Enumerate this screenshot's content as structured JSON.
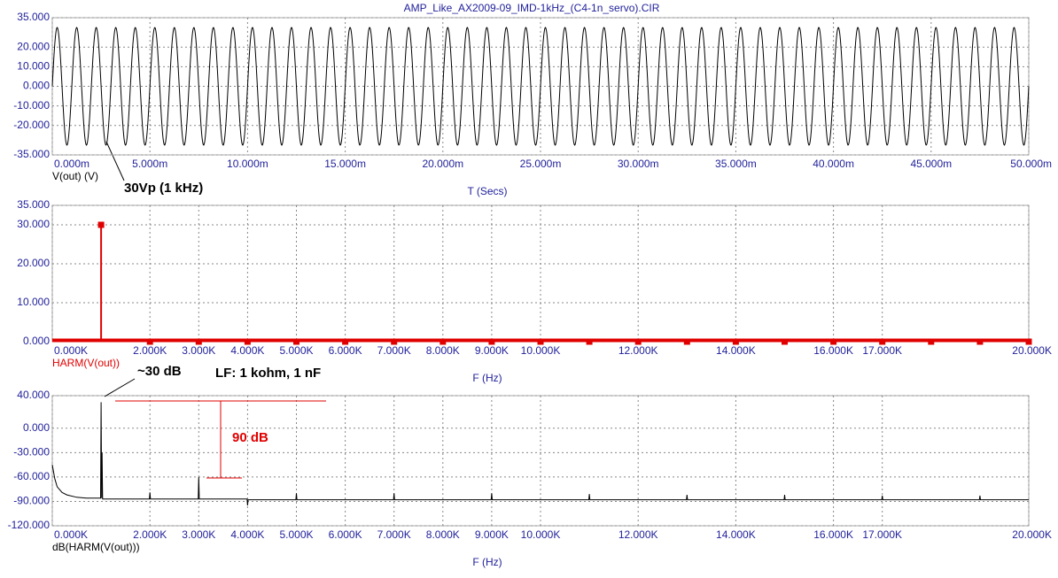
{
  "chart_data": [
    {
      "type": "line",
      "title": "AMP_Like_AX2009-09_IMD-1kHz_(C4-1n_servo).CIR",
      "x_label": "T (Secs)",
      "series": [
        {
          "name": "V(out) (V)",
          "color": "#000000",
          "amplitude": 30,
          "frequency": 1000
        }
      ],
      "xlim": [
        0,
        0.05
      ],
      "xticks": [
        {
          "value": 0,
          "label": "0.000m"
        },
        {
          "value": 0.005,
          "label": "5.000m"
        },
        {
          "value": 0.01,
          "label": "10.000m"
        },
        {
          "value": 0.015,
          "label": "15.000m"
        },
        {
          "value": 0.02,
          "label": "20.000m"
        },
        {
          "value": 0.025,
          "label": "25.000m"
        },
        {
          "value": 0.03,
          "label": "30.000m"
        },
        {
          "value": 0.035,
          "label": "35.000m"
        },
        {
          "value": 0.04,
          "label": "40.000m"
        },
        {
          "value": 0.045,
          "label": "45.000m"
        },
        {
          "value": 0.05,
          "label": "50.000m"
        }
      ],
      "ylim": [
        -35,
        35
      ],
      "yticks": [
        {
          "value": -35,
          "label": "-35.000"
        },
        {
          "value": -20,
          "label": "-20.000"
        },
        {
          "value": -10,
          "label": "-10.000"
        },
        {
          "value": 0,
          "label": "0.000"
        },
        {
          "value": 10,
          "label": "10.000"
        },
        {
          "value": 20,
          "label": "20.000"
        },
        {
          "value": 35,
          "label": "35.000"
        }
      ],
      "grid": true,
      "annotations": [
        "30Vp (1 kHz)"
      ]
    },
    {
      "type": "stem",
      "x_label": "F (Hz)",
      "series": [
        {
          "name": "HARM(V(out))",
          "color": "#e00000",
          "x": [
            1000,
            2000,
            3000,
            4000,
            5000,
            6000,
            7000,
            8000,
            9000,
            10000,
            11000,
            12000,
            13000,
            14000,
            15000,
            16000,
            17000,
            18000,
            19000,
            20000
          ],
          "values": [
            30,
            0,
            0,
            0,
            0,
            0,
            0,
            0,
            0,
            0,
            0,
            0,
            0,
            0,
            0,
            0,
            0,
            0,
            0,
            0
          ]
        }
      ],
      "xlim": [
        0,
        20000
      ],
      "xticks": [
        {
          "value": 0,
          "label": "0.000K"
        },
        {
          "value": 2000,
          "label": "2.000K"
        },
        {
          "value": 3000,
          "label": "3.000K"
        },
        {
          "value": 4000,
          "label": "4.000K"
        },
        {
          "value": 5000,
          "label": "5.000K"
        },
        {
          "value": 6000,
          "label": "6.000K"
        },
        {
          "value": 7000,
          "label": "7.000K"
        },
        {
          "value": 8000,
          "label": "8.000K"
        },
        {
          "value": 9000,
          "label": "9.000K"
        },
        {
          "value": 10000,
          "label": "10.000K"
        },
        {
          "value": 12000,
          "label": "12.000K"
        },
        {
          "value": 14000,
          "label": "14.000K"
        },
        {
          "value": 16000,
          "label": "16.000K"
        },
        {
          "value": 17000,
          "label": "17.000K"
        },
        {
          "value": 20000,
          "label": "20.000K"
        }
      ],
      "ylim": [
        0,
        35
      ],
      "yticks": [
        {
          "value": 0,
          "label": "0.000"
        },
        {
          "value": 10,
          "label": "10.000"
        },
        {
          "value": 20,
          "label": "20.000"
        },
        {
          "value": 30,
          "label": "30.000"
        },
        {
          "value": 35,
          "label": "35.000"
        }
      ],
      "grid": true
    },
    {
      "type": "line",
      "x_label": "F (Hz)",
      "series": [
        {
          "name": "dB(HARM(V(out)))",
          "color": "#000000",
          "x": [
            0,
            50,
            100,
            200,
            300,
            500,
            700,
            990,
            1000,
            1010,
            1020,
            1030,
            1990,
            2000,
            2010,
            2990,
            3000,
            3010,
            3990,
            4000,
            4010,
            4990,
            5000,
            5010,
            6990,
            7000,
            7010,
            8990,
            9000,
            9010,
            10990,
            11000,
            11010,
            12990,
            13000,
            13010,
            14990,
            15000,
            15010,
            16990,
            17000,
            17010,
            18990,
            19000,
            19010,
            20000
          ],
          "values": [
            -45,
            -62,
            -72,
            -79,
            -82,
            -85,
            -86,
            -86,
            32,
            -86,
            -30,
            -87,
            -87,
            -79,
            -87,
            -87,
            -60,
            -87,
            -87,
            -95,
            -88,
            -88,
            -80,
            -88,
            -88,
            -80,
            -88,
            -88,
            -80,
            -88,
            -88,
            -81,
            -88,
            -88,
            -82,
            -88,
            -88,
            -82,
            -88,
            -88,
            -83,
            -88,
            -88,
            -83,
            -88,
            -88
          ]
        }
      ],
      "xlim": [
        0,
        20000
      ],
      "xticks": [
        {
          "value": 0,
          "label": "0.000K"
        },
        {
          "value": 2000,
          "label": "2.000K"
        },
        {
          "value": 3000,
          "label": "3.000K"
        },
        {
          "value": 4000,
          "label": "4.000K"
        },
        {
          "value": 5000,
          "label": "5.000K"
        },
        {
          "value": 6000,
          "label": "6.000K"
        },
        {
          "value": 7000,
          "label": "7.000K"
        },
        {
          "value": 8000,
          "label": "8.000K"
        },
        {
          "value": 9000,
          "label": "9.000K"
        },
        {
          "value": 10000,
          "label": "10.000K"
        },
        {
          "value": 12000,
          "label": "12.000K"
        },
        {
          "value": 14000,
          "label": "14.000K"
        },
        {
          "value": 16000,
          "label": "16.000K"
        },
        {
          "value": 17000,
          "label": "17.000K"
        },
        {
          "value": 20000,
          "label": "20.000K"
        }
      ],
      "ylim": [
        -120,
        40
      ],
      "yticks": [
        {
          "value": -120,
          "label": "-120.000"
        },
        {
          "value": -90,
          "label": "-90.000"
        },
        {
          "value": -60,
          "label": "-60.000"
        },
        {
          "value": -30,
          "label": "-30.000"
        },
        {
          "value": 0,
          "label": "0.000"
        },
        {
          "value": 40,
          "label": "40.000"
        }
      ],
      "grid": true,
      "annotations": [
        "~30 dB",
        "LF: 1 kohm, 1 nF",
        "90 dB"
      ]
    }
  ]
}
